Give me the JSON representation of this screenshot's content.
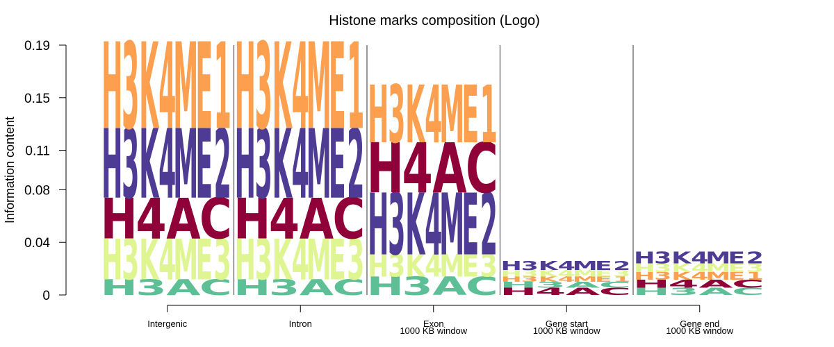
{
  "chart_data": {
    "type": "sequence-logo",
    "title": "Histone marks composition (Logo)",
    "xlabel": "",
    "ylabel": "Information content",
    "ylim": [
      0,
      0.19
    ],
    "yticks": [
      "0",
      "0.04",
      "0.08",
      "0.11",
      "0.15",
      "0.19"
    ],
    "ytick_values": [
      0,
      0.04,
      0.08,
      0.11,
      0.15,
      0.19
    ],
    "colors": {
      "H3K4ME1": "#fca050",
      "H3K4ME2": "#4e3b94",
      "H4AC": "#900039",
      "H3K4ME3": "#dff591",
      "H3AC": "#5cbf96"
    },
    "positions": [
      {
        "label_line1": "Intergenic",
        "label_line2": "",
        "stack": [
          {
            "mark": "H3AC",
            "value": 0.012
          },
          {
            "mark": "H3K4ME3",
            "value": 0.031
          },
          {
            "mark": "H4AC",
            "value": 0.031
          },
          {
            "mark": "H3K4ME2",
            "value": 0.053
          },
          {
            "mark": "H3K4ME1",
            "value": 0.066
          }
        ]
      },
      {
        "label_line1": "Intron",
        "label_line2": "",
        "stack": [
          {
            "mark": "H3AC",
            "value": 0.012
          },
          {
            "mark": "H3K4ME3",
            "value": 0.031
          },
          {
            "mark": "H4AC",
            "value": 0.031
          },
          {
            "mark": "H3K4ME2",
            "value": 0.053
          },
          {
            "mark": "H3K4ME1",
            "value": 0.066
          }
        ]
      },
      {
        "label_line1": "Exon",
        "label_line2": "1000 KB window",
        "stack": [
          {
            "mark": "H3AC",
            "value": 0.014
          },
          {
            "mark": "H3K4ME3",
            "value": 0.017
          },
          {
            "mark": "H3K4ME2",
            "value": 0.047
          },
          {
            "mark": "H4AC",
            "value": 0.038
          },
          {
            "mark": "H3K4ME1",
            "value": 0.044
          }
        ]
      },
      {
        "label_line1": "Gene start",
        "label_line2": "1000 KB window",
        "stack": [
          {
            "mark": "H4AC",
            "value": 0.0055
          },
          {
            "mark": "H3AC",
            "value": 0.0045
          },
          {
            "mark": "H3K4ME1",
            "value": 0.004
          },
          {
            "mark": "H3K4ME3",
            "value": 0.005
          },
          {
            "mark": "H3K4ME2",
            "value": 0.007
          }
        ]
      },
      {
        "label_line1": "Gene end",
        "label_line2": "1000 KB window",
        "stack": [
          {
            "mark": "H3AC",
            "value": 0.0055
          },
          {
            "mark": "H4AC",
            "value": 0.006
          },
          {
            "mark": "H3K4ME1",
            "value": 0.006
          },
          {
            "mark": "H3K4ME3",
            "value": 0.0065
          },
          {
            "mark": "H3K4ME2",
            "value": 0.009
          }
        ]
      }
    ]
  }
}
